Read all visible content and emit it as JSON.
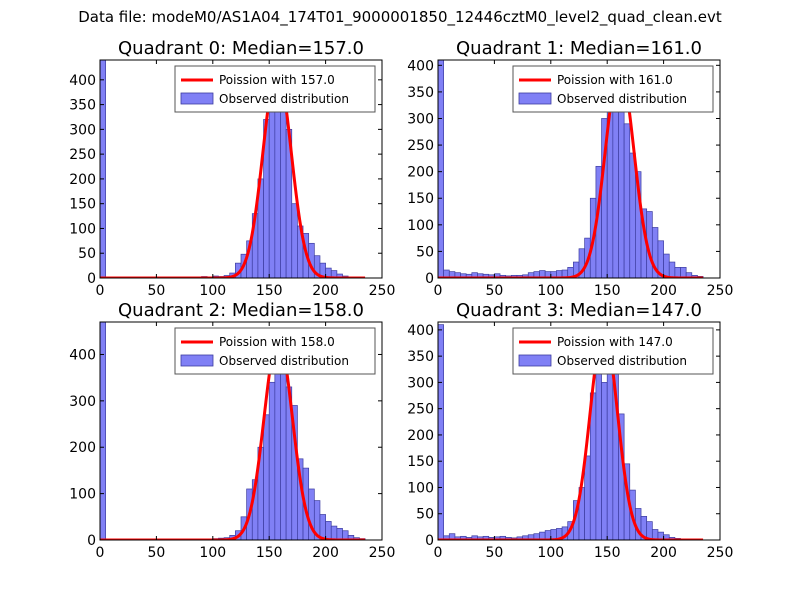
{
  "suptitle": "Data file: modeM0/AS1A04_174T01_9000001850_12446cztM0_level2_quad_clean.evt",
  "colors": {
    "hist_fill": "#8080f5",
    "hist_edge": "#3c3ca0",
    "curve": "#ff0000",
    "axis": "#000000",
    "legend_edge": "#555555"
  },
  "chart_data": [
    {
      "type": "bar",
      "title": "Quadrant 0: Median=157.0",
      "xlabel": "",
      "ylabel": "",
      "xlim": [
        0,
        250
      ],
      "ylim": [
        0,
        440
      ],
      "xticks": [
        "0",
        "50",
        "100",
        "150",
        "200",
        "250"
      ],
      "yticks": [
        "0",
        "50",
        "100",
        "150",
        "200",
        "250",
        "300",
        "350",
        "400"
      ],
      "legend": {
        "position": "top-right",
        "curve_label": "Poission with 157.0",
        "hist_label": "Observed distribution"
      },
      "poisson_mean": 157.0,
      "curve_peak": 420,
      "bin_width": 5,
      "bin_starts": [
        0,
        90,
        100,
        105,
        110,
        115,
        120,
        125,
        130,
        135,
        140,
        145,
        150,
        155,
        160,
        165,
        170,
        175,
        180,
        185,
        190,
        195,
        200,
        205,
        210,
        215,
        220
      ],
      "counts": [
        440,
        3,
        4,
        3,
        5,
        10,
        30,
        48,
        75,
        130,
        200,
        320,
        340,
        380,
        420,
        300,
        150,
        105,
        90,
        70,
        45,
        30,
        20,
        15,
        8,
        4,
        2
      ]
    },
    {
      "type": "bar",
      "title": "Quadrant 1: Median=161.0",
      "xlabel": "",
      "ylabel": "",
      "xlim": [
        0,
        250
      ],
      "ylim": [
        0,
        410
      ],
      "xticks": [
        "0",
        "50",
        "100",
        "150",
        "200",
        "250"
      ],
      "yticks": [
        "0",
        "50",
        "100",
        "150",
        "200",
        "250",
        "300",
        "350",
        "400"
      ],
      "legend": {
        "position": "top-right",
        "curve_label": "Poission with 161.0",
        "hist_label": "Observed distribution"
      },
      "poisson_mean": 161.0,
      "curve_peak": 395,
      "bin_width": 5,
      "bin_starts": [
        0,
        5,
        10,
        15,
        20,
        25,
        30,
        35,
        40,
        45,
        50,
        55,
        60,
        65,
        70,
        75,
        80,
        85,
        90,
        95,
        100,
        105,
        110,
        115,
        120,
        125,
        130,
        135,
        140,
        145,
        150,
        155,
        160,
        165,
        170,
        175,
        180,
        185,
        190,
        195,
        200,
        205,
        210,
        215,
        220,
        225,
        230
      ],
      "counts": [
        410,
        15,
        12,
        10,
        8,
        7,
        10,
        8,
        7,
        6,
        8,
        5,
        4,
        5,
        5,
        6,
        10,
        12,
        14,
        12,
        12,
        14,
        15,
        20,
        30,
        55,
        75,
        150,
        210,
        300,
        320,
        380,
        395,
        290,
        235,
        200,
        130,
        125,
        95,
        70,
        45,
        30,
        20,
        20,
        10,
        5,
        3
      ]
    },
    {
      "type": "bar",
      "title": "Quadrant 2: Median=158.0",
      "xlabel": "",
      "ylabel": "",
      "xlim": [
        0,
        250
      ],
      "ylim": [
        0,
        470
      ],
      "xticks": [
        "0",
        "50",
        "100",
        "150",
        "200",
        "250"
      ],
      "yticks": [
        "0",
        "100",
        "200",
        "300",
        "400"
      ],
      "legend": {
        "position": "top-right",
        "curve_label": "Poission with 158.0",
        "hist_label": "Observed distribution"
      },
      "poisson_mean": 158.0,
      "curve_peak": 435,
      "bin_width": 5,
      "bin_starts": [
        0,
        5,
        10,
        15,
        20,
        25,
        30,
        35,
        40,
        45,
        50,
        55,
        60,
        65,
        70,
        75,
        80,
        85,
        90,
        95,
        100,
        105,
        110,
        115,
        120,
        125,
        130,
        135,
        140,
        145,
        150,
        155,
        160,
        165,
        170,
        175,
        180,
        185,
        190,
        195,
        200,
        205,
        210,
        215,
        220,
        225,
        230
      ],
      "counts": [
        470,
        2,
        2,
        2,
        2,
        2,
        2,
        2,
        2,
        2,
        2,
        2,
        2,
        2,
        2,
        2,
        2,
        2,
        2,
        2,
        3,
        4,
        5,
        10,
        20,
        50,
        110,
        130,
        200,
        270,
        340,
        370,
        435,
        330,
        290,
        175,
        155,
        110,
        85,
        55,
        40,
        30,
        25,
        20,
        10,
        5,
        3
      ]
    },
    {
      "type": "bar",
      "title": "Quadrant 3: Median=147.0",
      "xlabel": "",
      "ylabel": "",
      "xlim": [
        0,
        250
      ],
      "ylim": [
        0,
        415
      ],
      "xticks": [
        "0",
        "50",
        "100",
        "150",
        "200",
        "250"
      ],
      "yticks": [
        "0",
        "50",
        "100",
        "150",
        "200",
        "250",
        "300",
        "350",
        "400"
      ],
      "legend": {
        "position": "top-right",
        "curve_label": "Poission with 147.0",
        "hist_label": "Observed distribution"
      },
      "poisson_mean": 147.0,
      "curve_peak": 400,
      "bin_width": 5,
      "bin_starts": [
        0,
        5,
        10,
        15,
        20,
        25,
        30,
        35,
        40,
        45,
        50,
        55,
        60,
        65,
        70,
        75,
        80,
        85,
        90,
        95,
        100,
        105,
        110,
        115,
        120,
        125,
        130,
        135,
        140,
        145,
        150,
        155,
        160,
        165,
        170,
        175,
        180,
        185,
        190,
        195,
        200,
        205,
        210,
        215
      ],
      "counts": [
        410,
        8,
        12,
        6,
        7,
        5,
        8,
        6,
        7,
        5,
        6,
        7,
        5,
        4,
        6,
        8,
        10,
        12,
        15,
        18,
        20,
        22,
        25,
        35,
        75,
        100,
        160,
        280,
        345,
        300,
        400,
        330,
        240,
        145,
        95,
        60,
        45,
        35,
        20,
        15,
        10,
        5,
        3,
        2
      ]
    }
  ]
}
